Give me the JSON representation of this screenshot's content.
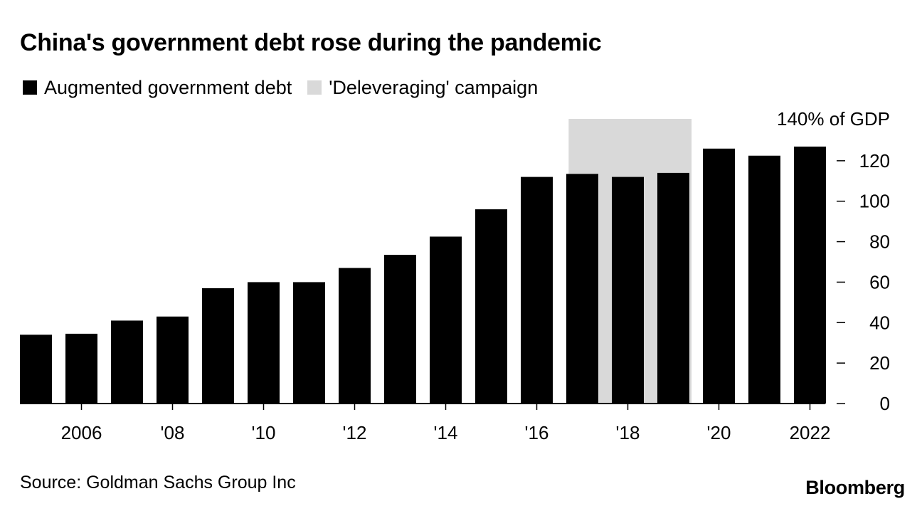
{
  "chart_data": {
    "type": "bar",
    "title": "China's government debt rose during the pandemic",
    "unit_label": "140% of GDP",
    "categories": [
      "2005",
      "2006",
      "2007",
      "2008",
      "2009",
      "2010",
      "2011",
      "2012",
      "2013",
      "2014",
      "2015",
      "2016",
      "2017",
      "2018",
      "2019",
      "2020",
      "2021",
      "2022"
    ],
    "x_tick_labels": [
      {
        "year": "2006",
        "label": "2006"
      },
      {
        "year": "2008",
        "label": "'08"
      },
      {
        "year": "2010",
        "label": "'10"
      },
      {
        "year": "2012",
        "label": "'12"
      },
      {
        "year": "2014",
        "label": "'14"
      },
      {
        "year": "2016",
        "label": "'16"
      },
      {
        "year": "2018",
        "label": "'18"
      },
      {
        "year": "2020",
        "label": "'20"
      },
      {
        "year": "2022",
        "label": "2022"
      }
    ],
    "series": [
      {
        "name": "Augmented government debt",
        "color": "#000000",
        "values": [
          34,
          34.5,
          41,
          43,
          57,
          60,
          60,
          67,
          73.5,
          82.5,
          96,
          112,
          113.5,
          112,
          114,
          126,
          122.5,
          127
        ]
      }
    ],
    "shaded_region": {
      "label": "'Deleveraging' campaign",
      "color": "#d9d9d9",
      "x_start": "2016.7",
      "x_end": "2019.4"
    },
    "y_ticks": [
      0,
      20,
      40,
      60,
      80,
      100,
      120
    ],
    "ylim": [
      0,
      140
    ],
    "legend_position": "top-left",
    "y_axis_position": "right",
    "grid": false
  },
  "footer": {
    "source": "Source: Goldman Sachs Group Inc",
    "brand": "Bloomberg"
  }
}
